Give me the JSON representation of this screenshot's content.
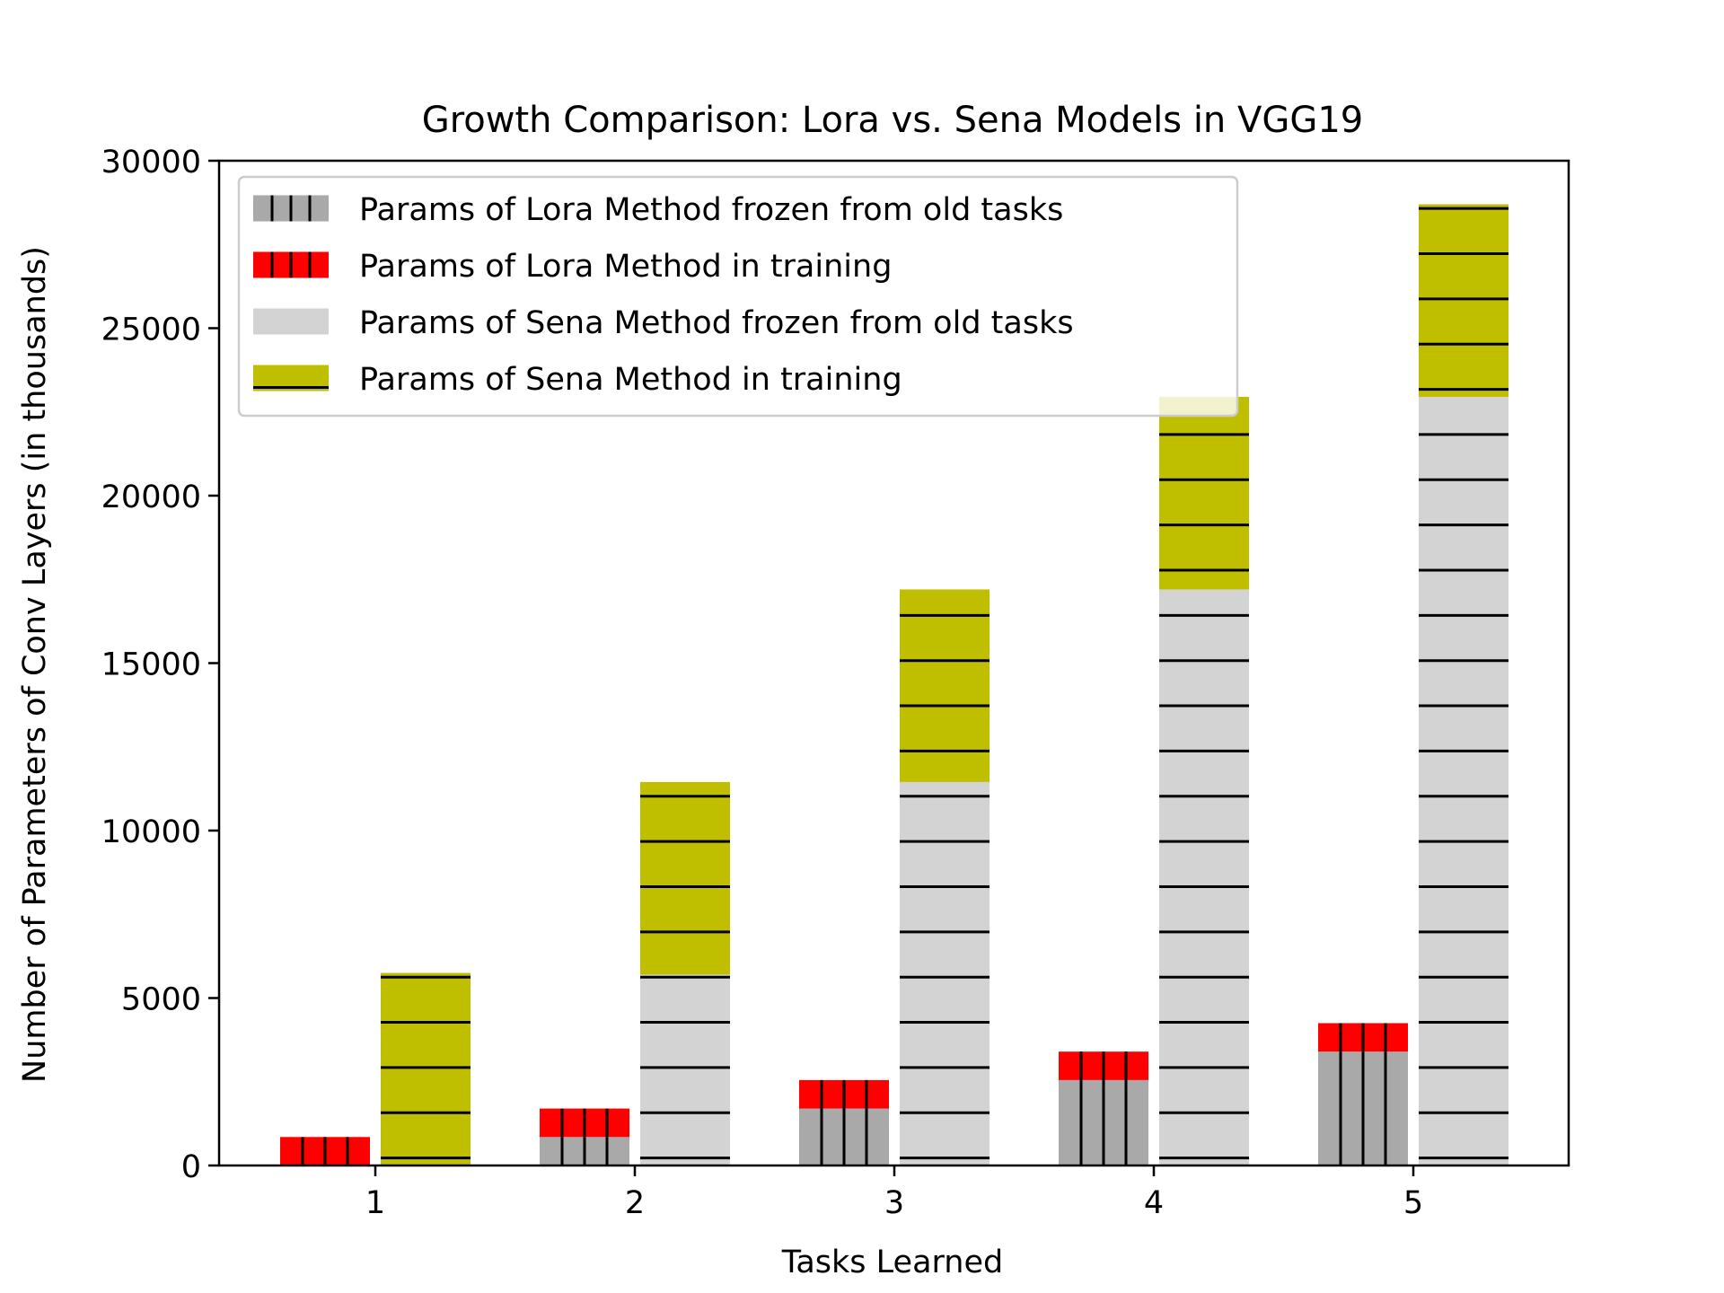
{
  "chart_data": {
    "type": "bar",
    "stacked": true,
    "title": "Growth Comparison: Lora vs. Sena Models in VGG19",
    "xlabel": "Tasks Learned",
    "ylabel": "Number of Parameters of Conv Layers (in thousands)",
    "categories": [
      "1",
      "2",
      "3",
      "4",
      "5"
    ],
    "ylim": [
      0,
      30000
    ],
    "yticks": [
      "0",
      "5000",
      "10000",
      "15000",
      "20000",
      "25000",
      "30000"
    ],
    "grid": false,
    "legend_position": "upper-left",
    "series": [
      {
        "name": "Params of Lora Method frozen from old tasks",
        "group": "lora",
        "color": "#a9a9a9",
        "hatch": "vertical",
        "values": [
          0,
          850,
          1700,
          2550,
          3400
        ]
      },
      {
        "name": "Params of Lora Method in training",
        "group": "lora",
        "color": "#ff0000",
        "hatch": "vertical",
        "values": [
          850,
          850,
          850,
          850,
          850
        ]
      },
      {
        "name": "Params of Sena Method frozen from old tasks",
        "group": "sena",
        "color": "#d3d3d3",
        "hatch": "horizontal",
        "values": [
          0,
          5700,
          11450,
          17200,
          22950
        ]
      },
      {
        "name": "Params of Sena Method in training",
        "group": "sena",
        "color": "#bfbf00",
        "hatch": "horizontal",
        "values": [
          5750,
          5750,
          5750,
          5750,
          5750
        ]
      }
    ]
  }
}
